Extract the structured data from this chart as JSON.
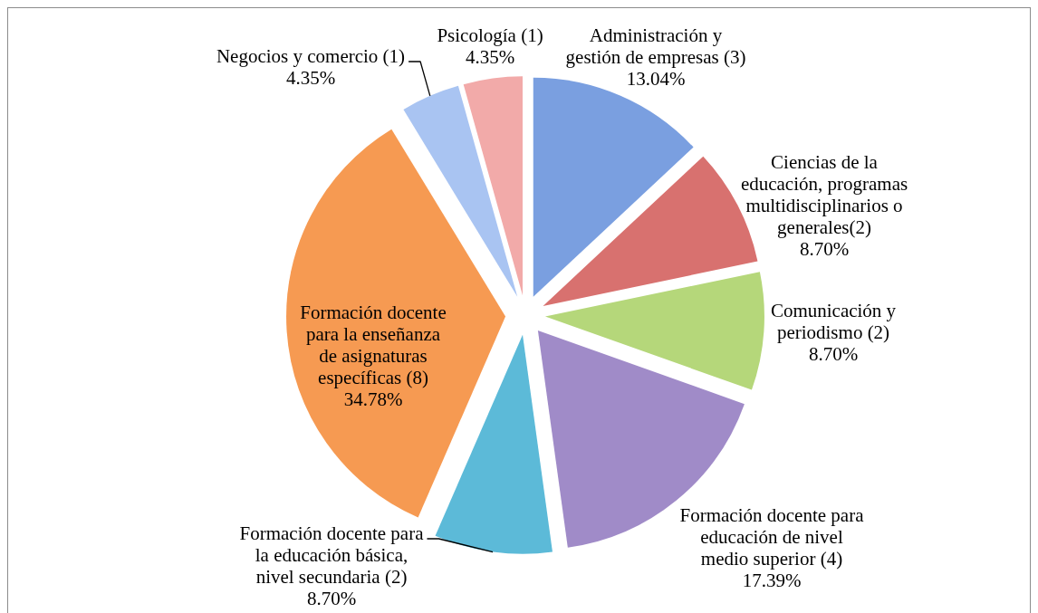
{
  "chart_data": {
    "type": "pie",
    "categories": [
      "Administración y gestión de empresas (3)",
      "Ciencias de la educación, programas multidisciplinarios o generales(2)",
      "Comunicación y periodismo (2)",
      "Formación docente para educación de nivel medio superior (4)",
      "Formación docente para la educación básica, nivel secundaria (2)",
      "Formación docente para la enseñanza de asignaturas específicas (8)",
      "Negocios y comercio (1)",
      "Psicología (1)"
    ],
    "values": [
      13.04,
      8.7,
      8.7,
      17.39,
      8.7,
      34.78,
      4.35,
      4.35
    ],
    "colors": [
      "#7a9fe0",
      "#d8716f",
      "#b5d77a",
      "#a08bc8",
      "#5cbad8",
      "#f69a52",
      "#a9c4f2",
      "#f2aaa9"
    ],
    "value_labels": [
      "13.04%",
      "8.70%",
      "8.70%",
      "17.39%",
      "8.70%",
      "34.78%",
      "4.35%",
      "4.35%"
    ],
    "legend": false
  }
}
